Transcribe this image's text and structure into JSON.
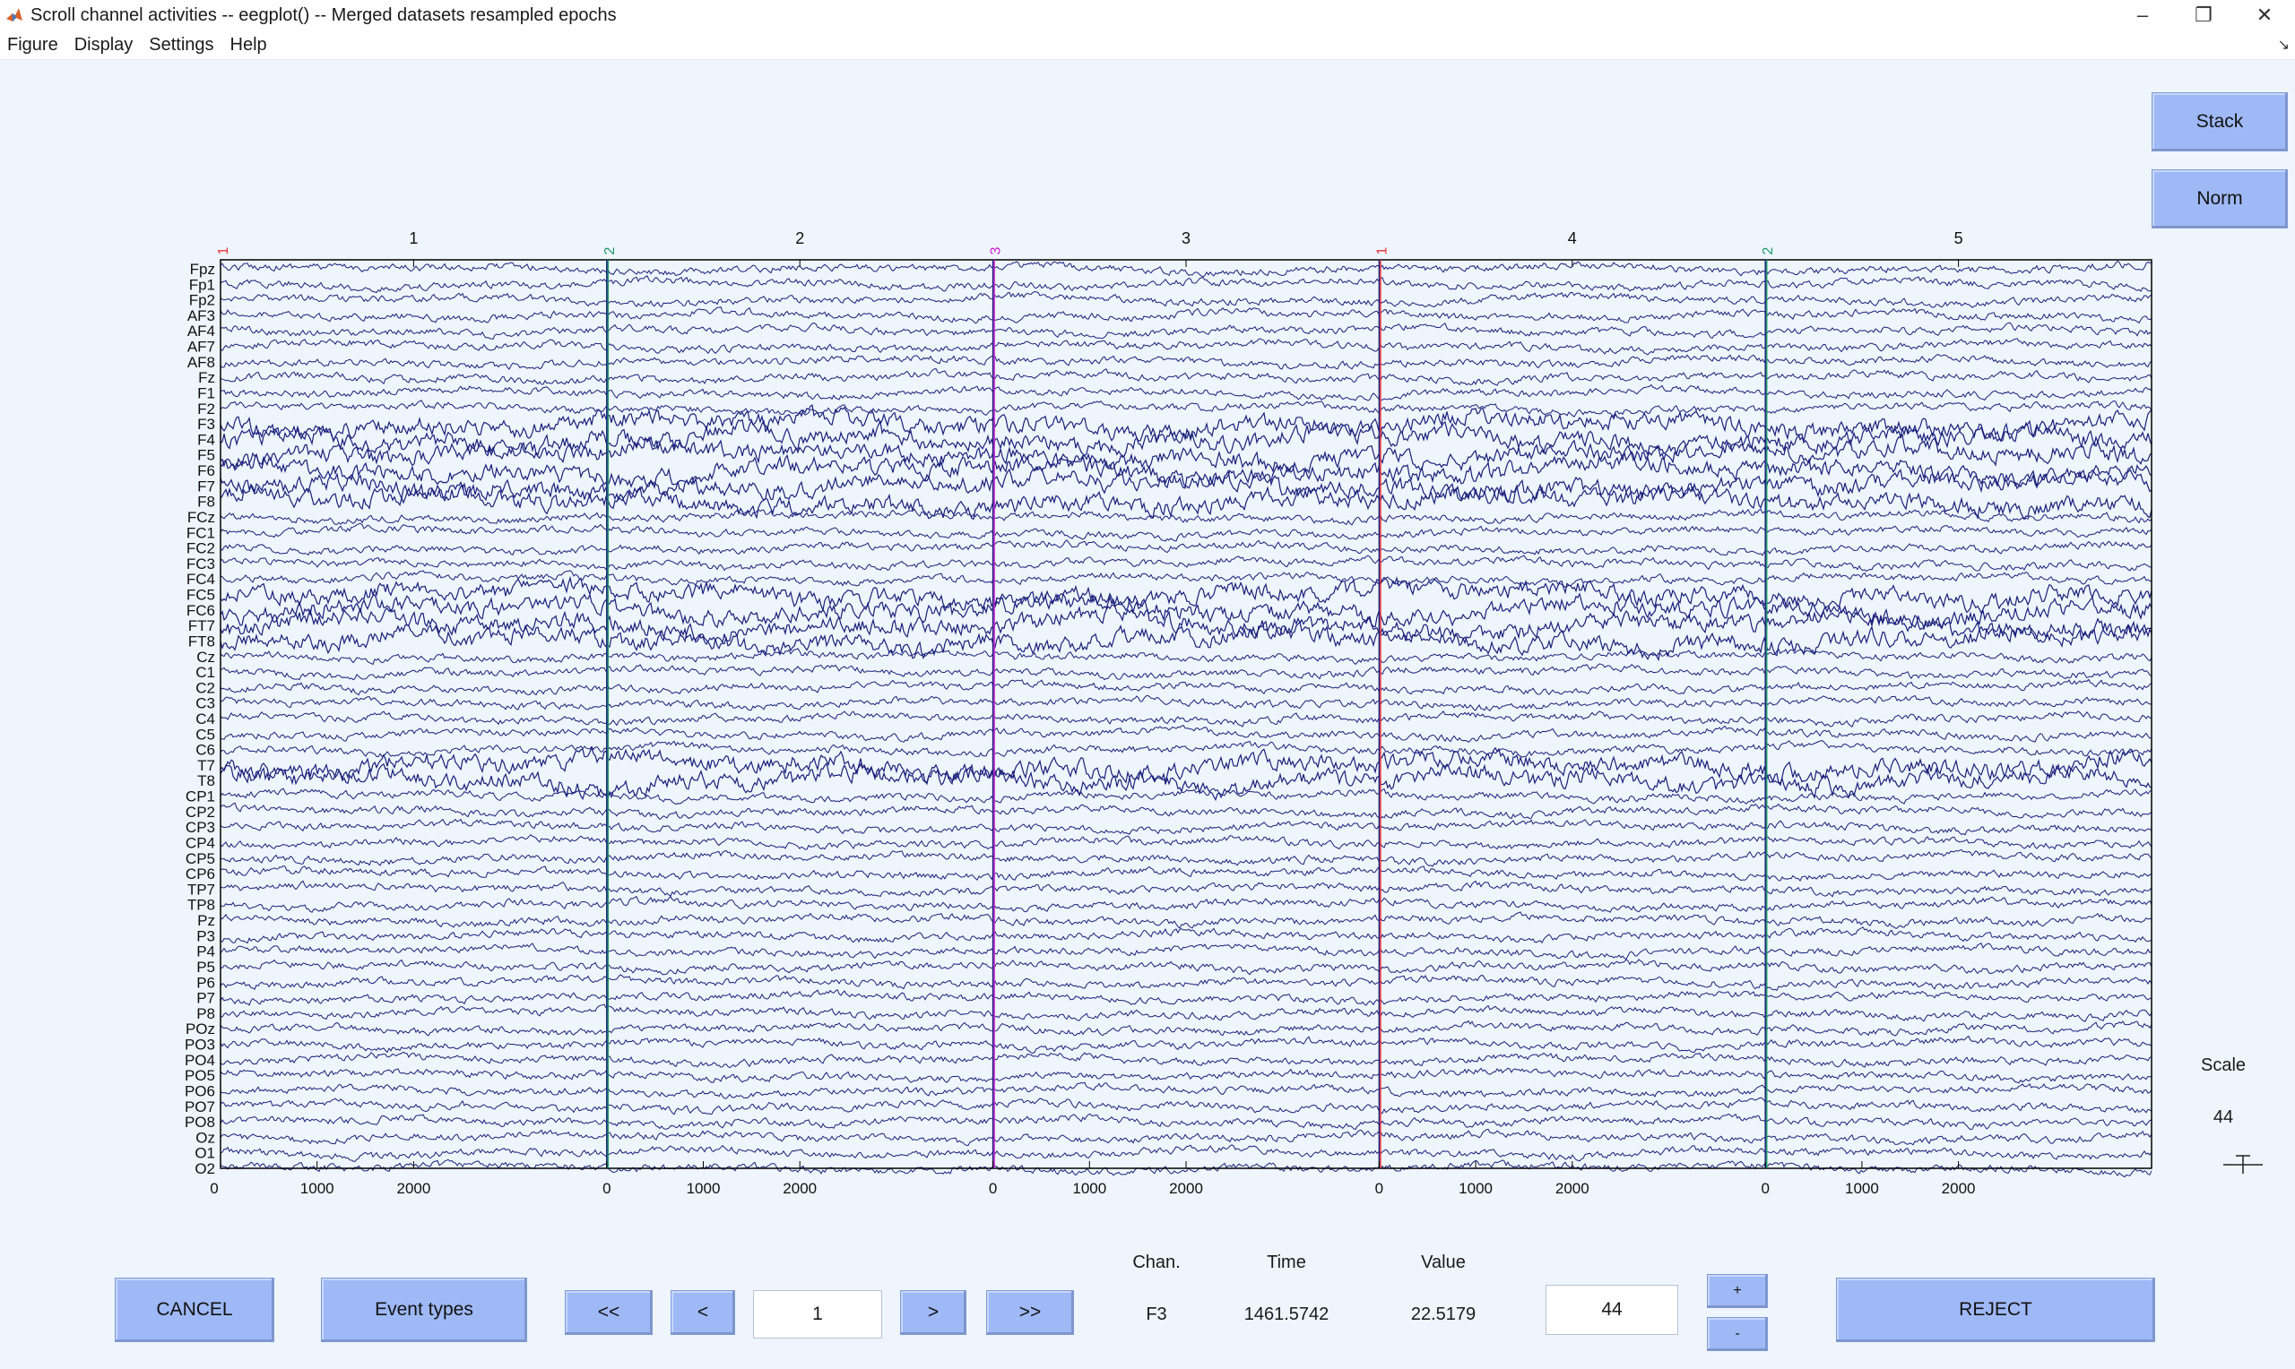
{
  "window": {
    "title": "Scroll channel activities -- eegplot() -- Merged datasets resampled epochs",
    "controls": [
      "minimize-icon",
      "restore-icon",
      "close-icon"
    ]
  },
  "menu": {
    "items": [
      "Figure",
      "Display",
      "Settings",
      "Help"
    ]
  },
  "side_buttons": {
    "stack": "Stack",
    "norm": "Norm"
  },
  "scale": {
    "label": "Scale",
    "value": "44"
  },
  "colors": {
    "background": "#eef5fc",
    "button": "#9fb9f7",
    "trace": "#1a1f7a",
    "event_1": "#e8303a",
    "event_2": "#1a9a66",
    "event_3": "#d21dd2",
    "epoch_boundary": "#1a1f7a"
  },
  "chart_data": {
    "type": "line",
    "description_kind": "eeg-multichannel-scroll",
    "channels": [
      "Fpz",
      "Fp1",
      "Fp2",
      "AF3",
      "AF4",
      "AF7",
      "AF8",
      "Fz",
      "F1",
      "F2",
      "F3",
      "F4",
      "F5",
      "F6",
      "F7",
      "F8",
      "FCz",
      "FC1",
      "FC2",
      "FC3",
      "FC4",
      "FC5",
      "FC6",
      "FT7",
      "FT8",
      "Cz",
      "C1",
      "C2",
      "C3",
      "C4",
      "C5",
      "C6",
      "T7",
      "T8",
      "CP1",
      "CP2",
      "CP3",
      "CP4",
      "CP5",
      "CP6",
      "TP7",
      "TP8",
      "Pz",
      "P3",
      "P4",
      "P5",
      "P6",
      "P7",
      "P8",
      "POz",
      "PO3",
      "PO4",
      "PO5",
      "PO6",
      "PO7",
      "PO8",
      "Oz",
      "O1",
      "O2"
    ],
    "epochs": [
      {
        "number": "1",
        "event_label": "1",
        "event_color": "#e8303a"
      },
      {
        "number": "2",
        "event_label": "2",
        "event_color": "#1a9a66"
      },
      {
        "number": "3",
        "event_label": "3",
        "event_color": "#d21dd2"
      },
      {
        "number": "4",
        "event_label": "1",
        "event_color": "#e8303a"
      },
      {
        "number": "5",
        "event_label": "2",
        "event_color": "#1a9a66"
      }
    ],
    "epoch_ms_span": [
      0,
      4000
    ],
    "x_tick_labels": [
      "0",
      "1000",
      "2000"
    ],
    "x_tick_values": [
      0,
      1000,
      2000
    ],
    "high_amplitude_channels": [
      "F3",
      "F4",
      "F5",
      "F6",
      "F7",
      "F8",
      "FC5",
      "FC6",
      "FT7",
      "FT8",
      "T7",
      "T8"
    ],
    "grid": false
  },
  "bottom": {
    "cancel": "CANCEL",
    "event_types": "Event types",
    "first": "<<",
    "prev": "<",
    "page": "1",
    "next": ">",
    "last": ">>",
    "chan_label": "Chan.",
    "time_label": "Time",
    "value_label": "Value",
    "chan_value": "F3",
    "time_value": "1461.5742",
    "value_value": "22.5179",
    "scale_input": "44",
    "plus": "+",
    "minus": "-",
    "reject": "REJECT"
  }
}
